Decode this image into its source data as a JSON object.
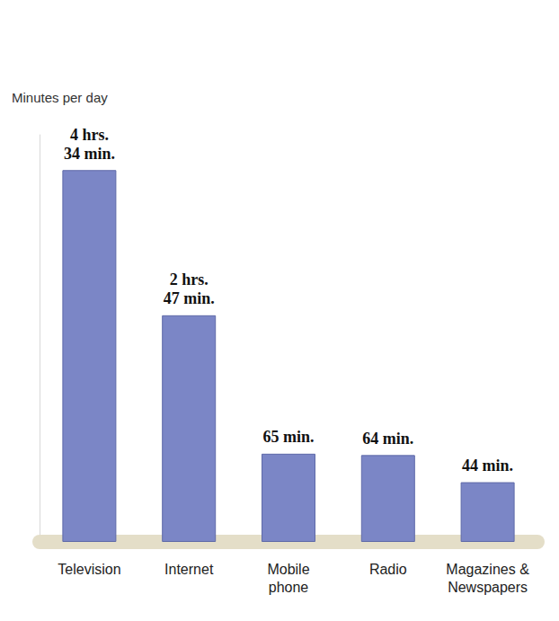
{
  "chart_data": {
    "type": "bar",
    "ylabel": "Minutes per day",
    "categories": [
      "Television",
      "Internet",
      "Mobile phone",
      "Radio",
      "Magazines & Newspapers"
    ],
    "values": [
      274,
      167,
      65,
      64,
      44
    ],
    "value_labels": [
      "4 hrs. 34 min.",
      "2 hrs. 47 min.",
      "65 min.",
      "64 min.",
      "44 min."
    ],
    "color": "#7b86c6",
    "ylim": [
      0,
      300
    ],
    "grid": false,
    "data_labels": true,
    "tick_labels": "x"
  }
}
